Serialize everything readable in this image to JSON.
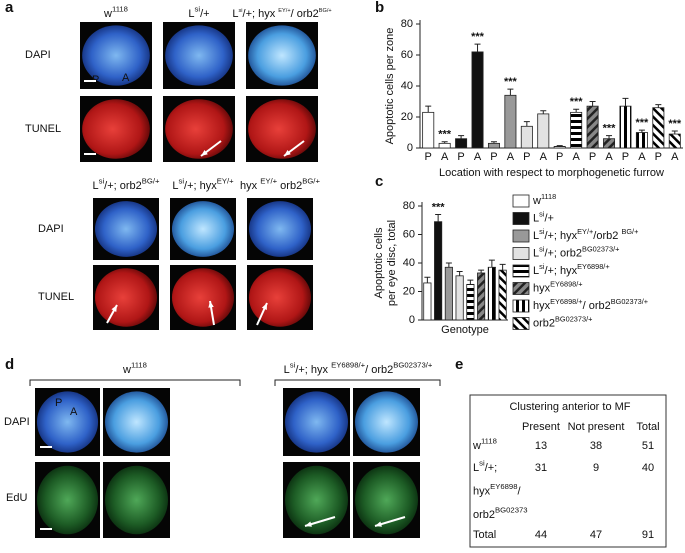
{
  "panel_labels": [
    "a",
    "b",
    "c",
    "d",
    "e"
  ],
  "panel_a": {
    "top_genotypes": [
      [
        "w",
        "1118"
      ],
      [
        "L",
        "si",
        "/+"
      ],
      [
        "L",
        "si",
        "/+; hyx ",
        "EY/+",
        "/ orb2",
        "BG/+"
      ]
    ],
    "bottom_genotypes": [
      [
        "L",
        "si",
        "/+; orb2",
        "BG/+"
      ],
      [
        "L",
        "si",
        "/+; hyx",
        "EY/+"
      ],
      [
        "hyx ",
        "EY/+",
        " orb2",
        "BG/+"
      ]
    ],
    "stains": [
      "DAPI",
      "TUNEL"
    ],
    "markers": [
      "P",
      "A"
    ]
  },
  "panel_d": {
    "genotypes": [
      [
        "w",
        "1118"
      ],
      [
        "L",
        "si",
        "/+; hyx ",
        "EY6898/+",
        "/ orb2",
        "BG02373/+"
      ]
    ],
    "stains": [
      "DAPI",
      "EdU"
    ],
    "markers": [
      "P",
      "A"
    ]
  },
  "chart_data": [
    {
      "type": "bar",
      "xlabel": "Location with respect to morphogenetic furrow",
      "ylabel": "Apoptotic cells per zone",
      "categories": [
        "P",
        "A"
      ],
      "ylim": [
        0,
        80
      ],
      "yticks": [
        0,
        20,
        40,
        60,
        80
      ],
      "series": [
        {
          "pattern": "white",
          "values": [
            23,
            3
          ],
          "errors": [
            4,
            1
          ],
          "significance": [
            null,
            "***"
          ]
        },
        {
          "pattern": "black",
          "values": [
            6,
            62
          ],
          "errors": [
            2,
            5
          ],
          "significance": [
            null,
            "***"
          ]
        },
        {
          "pattern": "gray",
          "values": [
            3,
            34
          ],
          "errors": [
            1,
            4
          ],
          "significance": [
            null,
            "***"
          ]
        },
        {
          "pattern": "lightgray",
          "values": [
            14,
            22
          ],
          "errors": [
            3,
            2
          ],
          "significance": [
            null,
            null
          ]
        },
        {
          "pattern": "hstripe",
          "values": [
            1,
            23
          ],
          "errors": [
            0.5,
            2
          ],
          "significance": [
            null,
            "***"
          ]
        },
        {
          "pattern": "diag",
          "values": [
            27,
            6
          ],
          "errors": [
            3,
            2
          ],
          "significance": [
            null,
            "***"
          ]
        },
        {
          "pattern": "vstripe",
          "values": [
            27,
            10
          ],
          "errors": [
            5,
            1.5
          ],
          "significance": [
            null,
            "***"
          ]
        },
        {
          "pattern": "bdiag",
          "values": [
            26,
            9
          ],
          "errors": [
            2,
            2
          ],
          "significance": [
            null,
            "***"
          ]
        }
      ]
    },
    {
      "type": "bar",
      "xlabel": "Genotype",
      "ylabel": [
        "Apoptotic cells",
        "per eye disc, total"
      ],
      "ylim": [
        0,
        80
      ],
      "yticks": [
        0,
        20,
        40,
        60,
        80
      ],
      "series": [
        {
          "name": [
            "w",
            "1118"
          ],
          "pattern": "white",
          "values": [
            26
          ],
          "errors": [
            4
          ]
        },
        {
          "name": [
            "L",
            "si",
            "/+"
          ],
          "pattern": "black",
          "values": [
            69
          ],
          "errors": [
            5
          ],
          "significance": [
            "***"
          ]
        },
        {
          "name": [
            "L",
            "si",
            "/+; hyx",
            "EY/+",
            "/orb2 ",
            "BG/+"
          ],
          "pattern": "gray",
          "values": [
            37
          ],
          "errors": [
            3
          ]
        },
        {
          "name": [
            "L",
            "si",
            "/+; orb2",
            "BG02373/+"
          ],
          "pattern": "lightgray",
          "values": [
            31
          ],
          "errors": [
            3
          ]
        },
        {
          "name": [
            "L",
            "si",
            "/+; hyx",
            "EY6898/+"
          ],
          "pattern": "hstripe",
          "values": [
            25
          ],
          "errors": [
            3
          ]
        },
        {
          "name": [
            "hyx",
            "EY6898/+"
          ],
          "pattern": "diag",
          "values": [
            33
          ],
          "errors": [
            2
          ]
        },
        {
          "name": [
            "hyx",
            "EY6898/+",
            "/ orb2",
            "BG02373/+"
          ],
          "pattern": "vstripe",
          "values": [
            37
          ],
          "errors": [
            5
          ]
        },
        {
          "name": [
            "orb2",
            "BG02373/+"
          ],
          "pattern": "bdiag",
          "values": [
            35
          ],
          "errors": [
            4
          ]
        }
      ]
    }
  ],
  "table": {
    "title": "Clustering anterior to MF",
    "columns": [
      "Present",
      "Not present",
      "Total"
    ],
    "rows": [
      {
        "label": [
          [
            "w",
            "1118"
          ]
        ],
        "cells": [
          13,
          38,
          51
        ]
      },
      {
        "label": [
          [
            "L",
            "si",
            "/+;"
          ],
          [
            "hyx",
            "EY6898",
            "/"
          ],
          [
            "orb2",
            "BG02373"
          ]
        ],
        "cells": [
          31,
          9,
          40
        ]
      },
      {
        "label": [
          [
            "Total"
          ]
        ],
        "cells": [
          44,
          47,
          91
        ]
      }
    ]
  }
}
